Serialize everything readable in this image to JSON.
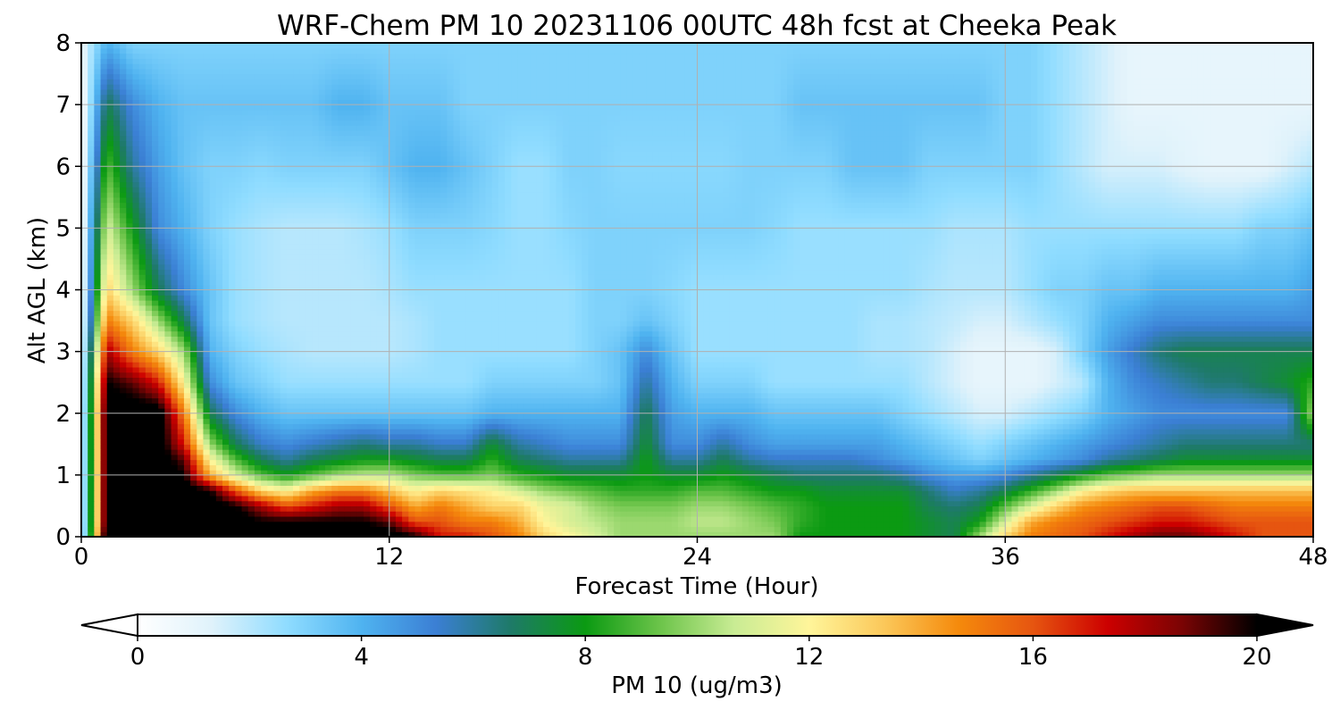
{
  "chart_data": {
    "type": "heatmap",
    "title": "WRF-Chem PM 10  20231106 00UTC 48h fcst at Cheeka Peak",
    "xlabel": "Forecast Time (Hour)",
    "ylabel": "Alt AGL (km)",
    "xlim": [
      0,
      48
    ],
    "ylim": [
      0,
      8
    ],
    "x_ticks": [
      "0",
      "12",
      "24",
      "36",
      "48"
    ],
    "y_ticks": [
      "0",
      "1",
      "2",
      "3",
      "4",
      "5",
      "6",
      "7",
      "8"
    ],
    "grid": true,
    "colorbar": {
      "label": "PM 10  (ug/m3)",
      "range": [
        0,
        20
      ],
      "ticks": [
        "0",
        "4",
        "8",
        "12",
        "16",
        "20"
      ],
      "extend": "both",
      "orientation": "horizontal",
      "colors": [
        "#ffffff",
        "#dff2fb",
        "#8fdcff",
        "#4fb3f0",
        "#3b7fd4",
        "#1e7a68",
        "#0b9a12",
        "#6cc44a",
        "#c9ec94",
        "#fff59a",
        "#fbc85a",
        "#f58a0c",
        "#e65510",
        "#cc0000",
        "#7a0404",
        "#000000"
      ]
    },
    "x_hours": [
      0,
      1,
      2,
      3,
      4,
      5,
      6,
      7,
      8,
      9,
      10,
      11,
      12,
      13,
      14,
      15,
      16,
      17,
      18,
      19,
      20,
      21,
      22,
      23,
      24,
      25,
      26,
      27,
      28,
      29,
      30,
      31,
      32,
      33,
      34,
      35,
      36,
      37,
      38,
      39,
      40,
      41,
      42,
      43,
      44,
      45,
      46,
      47,
      48
    ],
    "z_km": [
      0,
      0.25,
      0.5,
      0.75,
      1,
      1.25,
      1.5,
      2,
      2.5,
      3,
      3.5,
      4,
      5,
      6,
      7,
      8
    ],
    "values_ug_m3": [
      [
        0,
        22,
        22,
        22,
        22,
        22,
        22,
        22,
        21,
        21,
        21,
        21,
        21,
        20,
        17,
        17,
        16,
        15,
        13,
        12,
        11,
        10,
        10,
        10,
        10,
        10,
        10,
        10,
        8,
        8,
        8,
        8,
        8,
        7.5,
        7,
        10,
        13,
        15,
        15.5,
        16,
        17,
        18,
        19,
        19,
        18,
        17,
        16,
        16,
        16
      ],
      [
        0,
        21,
        21,
        21,
        21,
        21,
        21,
        20,
        20,
        20,
        20,
        20,
        19,
        16,
        16,
        15,
        15,
        14,
        12,
        11,
        10.5,
        10,
        10,
        10,
        10.5,
        10.5,
        10,
        9.5,
        8.5,
        8,
        8,
        8,
        8,
        7.5,
        7,
        8,
        11,
        14,
        15,
        15.5,
        16,
        16.5,
        17,
        17,
        16.5,
        16,
        16,
        16,
        16
      ],
      [
        0,
        21,
        21,
        21,
        21,
        21,
        20,
        18,
        16,
        17,
        18,
        18,
        16,
        14,
        15,
        14,
        13,
        13,
        11.5,
        11,
        10,
        9.5,
        9.5,
        9.5,
        10,
        10,
        9.5,
        9,
        8.5,
        8,
        8,
        8,
        8,
        7,
        6.5,
        7,
        9,
        11,
        13,
        14.5,
        15,
        15.5,
        16,
        16,
        15.5,
        15,
        15,
        15,
        15
      ],
      [
        0,
        21,
        21,
        21,
        21,
        20,
        16,
        13,
        12,
        14,
        15,
        15,
        13.5,
        12,
        13,
        12.5,
        12,
        11,
        10,
        9.5,
        9,
        8.5,
        8.5,
        8.5,
        9,
        9,
        8.5,
        8,
        8,
        7.5,
        7.5,
        7.5,
        7.5,
        6.5,
        5.5,
        6,
        7,
        8.5,
        10,
        12,
        13,
        13.5,
        13.5,
        13.5,
        13.5,
        13.5,
        13.5,
        13.5,
        13.5
      ],
      [
        0,
        21,
        21,
        21,
        20,
        14,
        11,
        9,
        8,
        9,
        10,
        10.5,
        10.5,
        9.5,
        9,
        9,
        9.5,
        8.5,
        8,
        7.5,
        7.5,
        7.5,
        8,
        7.5,
        7.5,
        8,
        7.5,
        7,
        6.5,
        6.5,
        6.5,
        6.5,
        6,
        5,
        4.5,
        4.5,
        5,
        6,
        7,
        8,
        9,
        9.5,
        10,
        10,
        10,
        10,
        10,
        10,
        10
      ],
      [
        0,
        21,
        21,
        21,
        19,
        12,
        9,
        7,
        6,
        7,
        7.5,
        8,
        8,
        7.5,
        7,
        7,
        8.5,
        7,
        6.5,
        6,
        6,
        6,
        8,
        6,
        6,
        7,
        6,
        5.5,
        5.5,
        5.5,
        5.5,
        5,
        4.5,
        4,
        3.5,
        3,
        3.5,
        4,
        4.5,
        5,
        6,
        6.5,
        7,
        7.5,
        7.5,
        7.5,
        7.5,
        7.5,
        7.5
      ],
      [
        0,
        21,
        21,
        21,
        17,
        10,
        7,
        5.5,
        5,
        5.5,
        6,
        6.5,
        6,
        6,
        5.5,
        5.5,
        7.5,
        6,
        5.5,
        5,
        5,
        5,
        7.5,
        5,
        5,
        6,
        5,
        4.5,
        4.5,
        4.5,
        4.5,
        4.5,
        4,
        3.5,
        3,
        2.5,
        3,
        3.5,
        4,
        4.5,
        5,
        5.5,
        6,
        6.5,
        6.5,
        6.5,
        6.5,
        6.5,
        6.5
      ],
      [
        0,
        21,
        21,
        21,
        15,
        7,
        5,
        4,
        3.5,
        3.5,
        3.5,
        3.5,
        3.5,
        3.5,
        3.5,
        3.5,
        4,
        4,
        4,
        4,
        4,
        4,
        7,
        4.5,
        4,
        4,
        4,
        3.5,
        3.5,
        3.5,
        3.5,
        3.5,
        3,
        2.5,
        2,
        1.5,
        1.5,
        2,
        2.5,
        3,
        4,
        4.5,
        5,
        5,
        5,
        5,
        5,
        5,
        10
      ],
      [
        0,
        20,
        19,
        17,
        12,
        5,
        3.5,
        3,
        2.5,
        2.5,
        2.5,
        2.5,
        2.5,
        2.5,
        2.5,
        2.5,
        3,
        3,
        3,
        3,
        3,
        3.5,
        6,
        4,
        3,
        3,
        3,
        2.5,
        2.5,
        2.5,
        2.5,
        2.5,
        2.5,
        2,
        1.5,
        1,
        1,
        1,
        1.5,
        2,
        4,
        5,
        5.5,
        6,
        6.5,
        6.5,
        7,
        7.5,
        8.5
      ],
      [
        0,
        18,
        15,
        13,
        10,
        4,
        3,
        2.5,
        2.2,
        2,
        2,
        2,
        2,
        2.2,
        2.5,
        2.5,
        2.5,
        2.5,
        2.5,
        2.5,
        3,
        3.5,
        5,
        3.5,
        2.5,
        2.5,
        2.5,
        2.5,
        2.5,
        2.5,
        2.5,
        2.2,
        2.2,
        2,
        1.5,
        1,
        1,
        1,
        1.5,
        3,
        4.5,
        5.5,
        6.5,
        7,
        7,
        7,
        7,
        7,
        7
      ],
      [
        0,
        15,
        13,
        10,
        7,
        3.5,
        2.5,
        2.2,
        2,
        2,
        2,
        2,
        2,
        2.2,
        2.5,
        2.5,
        2.5,
        2.5,
        2.5,
        2.5,
        3,
        3,
        3.5,
        3,
        2.5,
        2.5,
        2.5,
        2.5,
        2.5,
        2.5,
        2.5,
        2.2,
        2.2,
        2,
        1.8,
        1.5,
        1.5,
        2,
        2.5,
        3,
        4,
        4.5,
        5,
        5,
        5,
        5,
        5,
        5,
        5
      ],
      [
        0,
        13,
        10,
        7,
        5,
        3.5,
        2.5,
        2.2,
        2,
        2,
        2,
        2,
        2.2,
        2.5,
        2.5,
        2.5,
        2.5,
        2.5,
        2.5,
        2.5,
        3,
        3,
        3,
        2.8,
        2.5,
        2.5,
        2.5,
        2.5,
        2.5,
        2.5,
        2.5,
        2.5,
        2.5,
        2.2,
        2,
        2,
        2,
        2.5,
        3,
        3,
        3.5,
        3.5,
        4,
        4,
        4,
        4,
        4,
        4,
        4.5
      ],
      [
        0,
        11,
        8,
        5,
        4,
        3,
        2.5,
        2.2,
        2,
        2,
        2,
        2.2,
        2.5,
        3,
        3,
        3,
        2.8,
        2.5,
        2.5,
        2.8,
        3,
        3,
        3,
        3,
        3,
        3,
        3,
        2.8,
        2.5,
        2.5,
        2.5,
        2.5,
        2.5,
        2.5,
        2.2,
        2.2,
        2.2,
        2.5,
        2.5,
        2.5,
        2.5,
        2.5,
        2.5,
        2.5,
        2.5,
        2.5,
        3,
        3,
        3.5
      ],
      [
        0,
        9,
        6,
        4.5,
        3.5,
        3,
        3,
        2.8,
        3,
        3,
        3,
        3,
        3.5,
        4,
        4,
        3.5,
        3,
        2.5,
        2.5,
        3,
        3,
        2.8,
        2.8,
        2.8,
        2.8,
        2.8,
        3,
        3,
        3,
        3,
        3.5,
        3.5,
        3.5,
        3,
        3,
        3,
        3,
        3,
        2.5,
        2,
        1.5,
        1.5,
        1.5,
        1.2,
        1,
        1,
        1,
        1.5,
        2
      ],
      [
        0,
        7,
        5,
        4,
        3.5,
        3.5,
        3.5,
        3.5,
        3.5,
        3.5,
        4,
        4,
        3.5,
        3.5,
        3.5,
        3,
        3,
        3,
        3,
        3,
        3,
        3,
        3,
        3,
        3,
        3,
        3,
        3,
        3.5,
        3.5,
        3.5,
        3.5,
        3.5,
        3.5,
        3.5,
        3.5,
        3,
        3,
        2.5,
        2,
        1.5,
        1,
        1,
        1,
        1,
        1,
        1,
        1,
        1
      ],
      [
        1,
        4,
        3,
        3,
        3,
        3,
        3,
        3,
        3,
        3,
        3,
        3,
        3,
        3,
        3,
        3,
        3,
        3,
        3,
        3,
        3,
        3,
        3,
        3,
        3,
        3,
        3,
        3,
        3,
        3,
        3,
        3,
        3,
        3,
        3,
        3,
        3,
        3,
        2.5,
        2,
        1.5,
        1,
        1,
        1,
        1,
        1,
        1,
        1,
        1
      ]
    ]
  }
}
